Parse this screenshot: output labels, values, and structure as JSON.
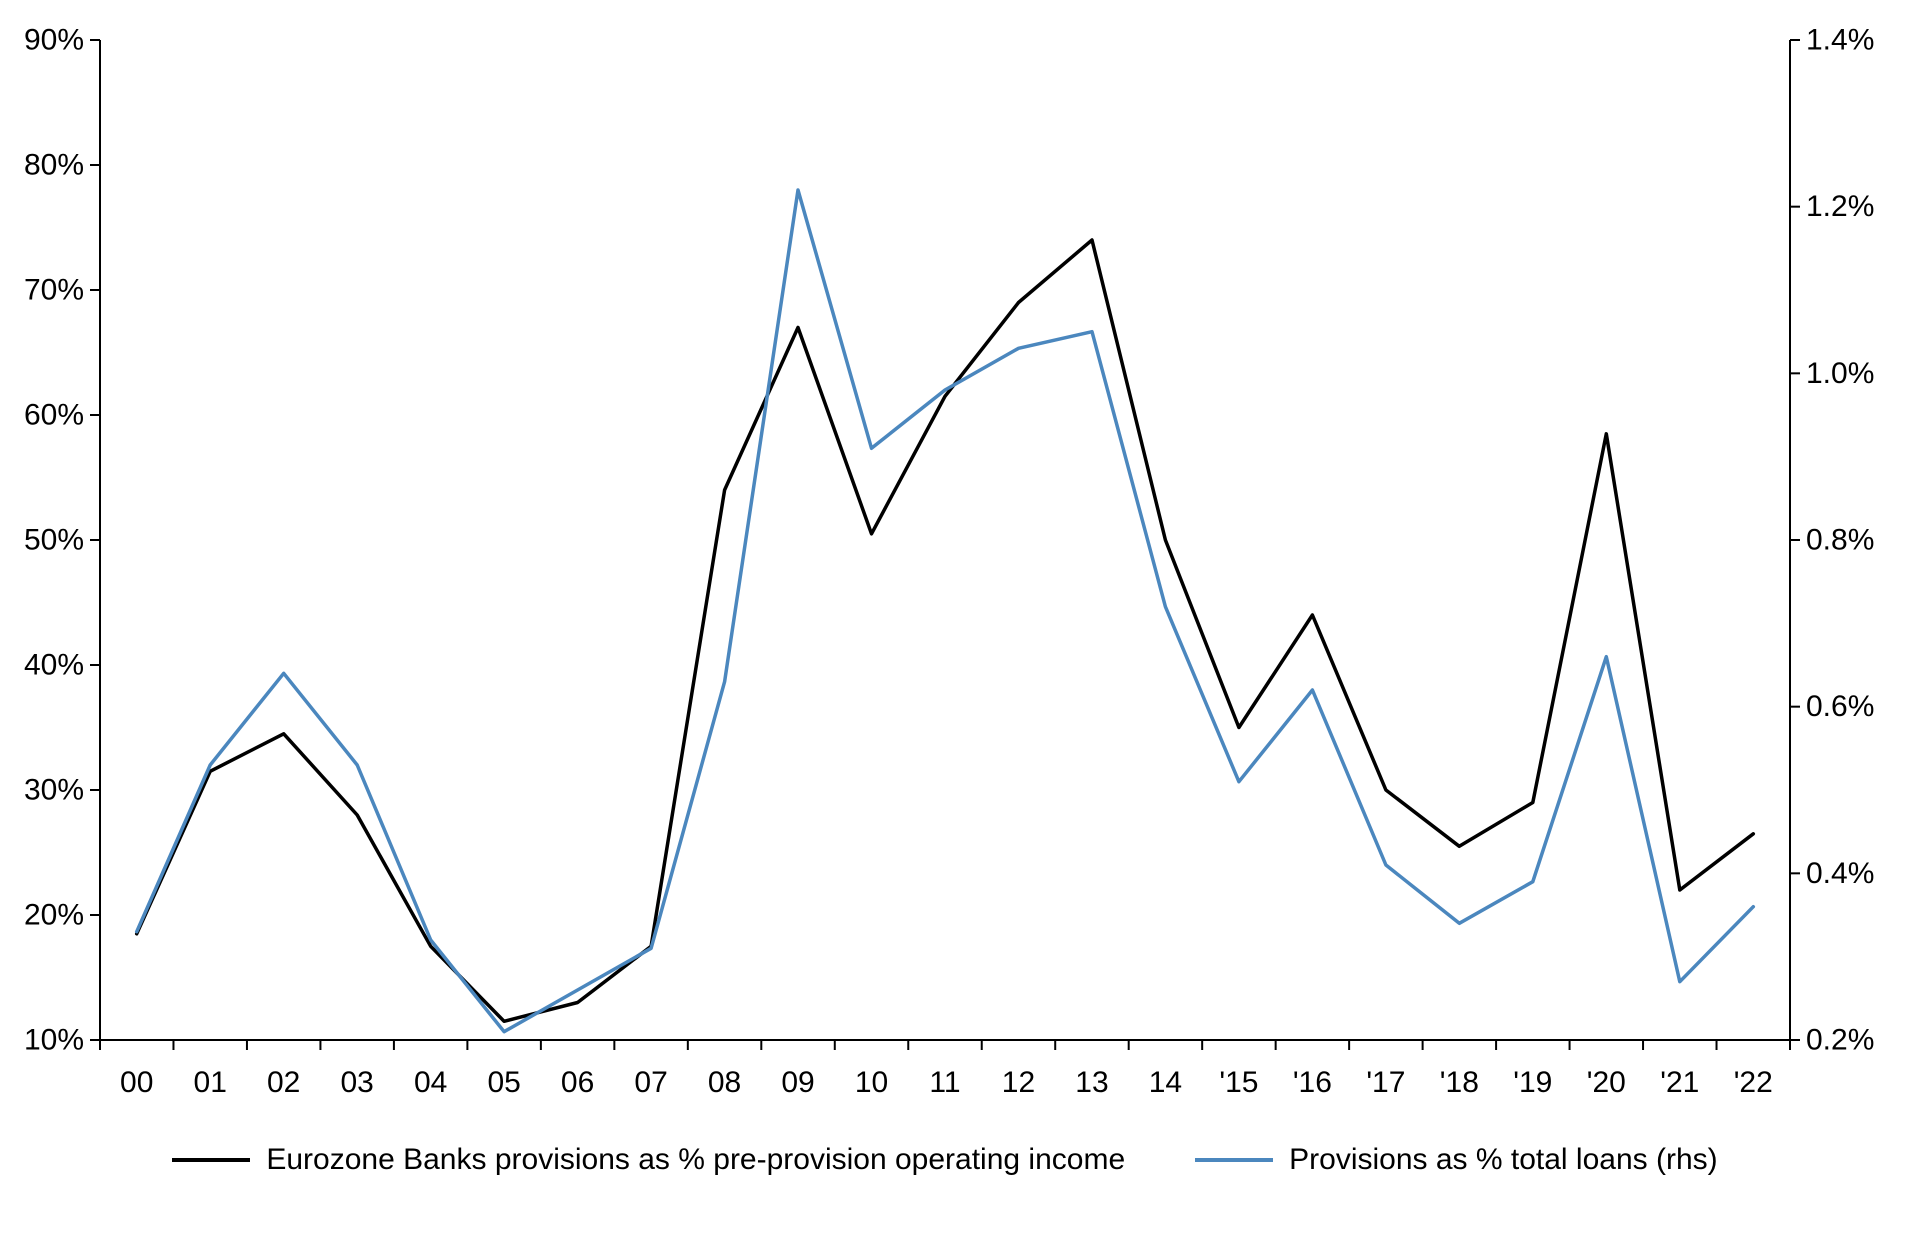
{
  "chart_data": {
    "type": "line",
    "categories": [
      "00",
      "01",
      "02",
      "03",
      "04",
      "05",
      "06",
      "07",
      "08",
      "09",
      "10",
      "11",
      "12",
      "13",
      "14",
      "'15",
      "'16",
      "'17",
      "'18",
      "'19",
      "'20",
      "'21",
      "'22"
    ],
    "series": [
      {
        "name": "Eurozone Banks provisions as % pre-provision operating income",
        "axis": "left",
        "color": "#000000",
        "values": [
          18.5,
          31.5,
          34.5,
          28,
          17.5,
          11.5,
          13,
          17.5,
          54,
          67,
          50.5,
          61.5,
          69,
          74,
          50,
          35,
          44,
          30,
          25.5,
          29,
          58.5,
          22,
          26.5
        ]
      },
      {
        "name": "Provisions as % total loans (rhs)",
        "axis": "right",
        "color": "#4B87BE",
        "values": [
          0.33,
          0.53,
          0.64,
          0.53,
          0.32,
          0.21,
          0.26,
          0.31,
          0.63,
          1.22,
          0.91,
          0.98,
          1.03,
          1.05,
          0.72,
          0.51,
          0.62,
          0.41,
          0.34,
          0.39,
          0.66,
          0.27,
          0.36
        ]
      }
    ],
    "left_axis": {
      "min": 10,
      "max": 90,
      "tick_values": [
        10,
        20,
        30,
        40,
        50,
        60,
        70,
        80,
        90
      ],
      "ticks": [
        "10%",
        "20%",
        "30%",
        "40%",
        "50%",
        "60%",
        "70%",
        "80%",
        "90%"
      ]
    },
    "right_axis": {
      "min": 0.2,
      "max": 1.4,
      "tick_values": [
        0.2,
        0.4,
        0.6,
        0.8,
        1.0,
        1.2,
        1.4
      ],
      "ticks": [
        "0.2%",
        "0.4%",
        "0.6%",
        "0.8%",
        "1.0%",
        "1.2%",
        "1.4%"
      ]
    },
    "grid": false,
    "legend_position": "bottom",
    "legend": [
      {
        "label": "Eurozone Banks provisions as % pre-provision operating income",
        "color": "#000000"
      },
      {
        "label": "Provisions as % total loans (rhs)",
        "color": "#4B87BE"
      }
    ]
  }
}
